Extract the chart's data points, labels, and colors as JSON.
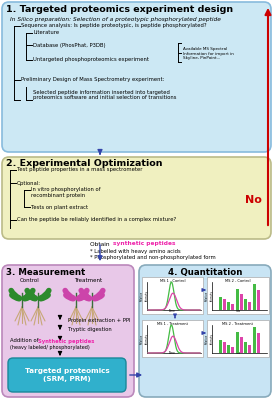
{
  "section1_title": "1. Targeted proteomics experiment design",
  "section1_bg": "#cce8f4",
  "section1_border": "#88bbdd",
  "section2_title": "2. Experimental Optimization",
  "section2_bg": "#f0f0c0",
  "section2_border": "#bbbb88",
  "section3_title": "3. Measurement",
  "section3_bg": "#e8c8e8",
  "section3_border": "#bb88bb",
  "section4_title": "4. Quantitation",
  "section4_bg": "#c8e4f4",
  "section4_border": "#88aabb",
  "fig_bg": "#ffffff",
  "arrow_color": "#3344aa",
  "no_color": "#cc0000",
  "magenta": "#ee22aa",
  "green_plant": "#2d8a2d",
  "pink_plant": "#cc44aa",
  "teal_box": "#30b0cc"
}
